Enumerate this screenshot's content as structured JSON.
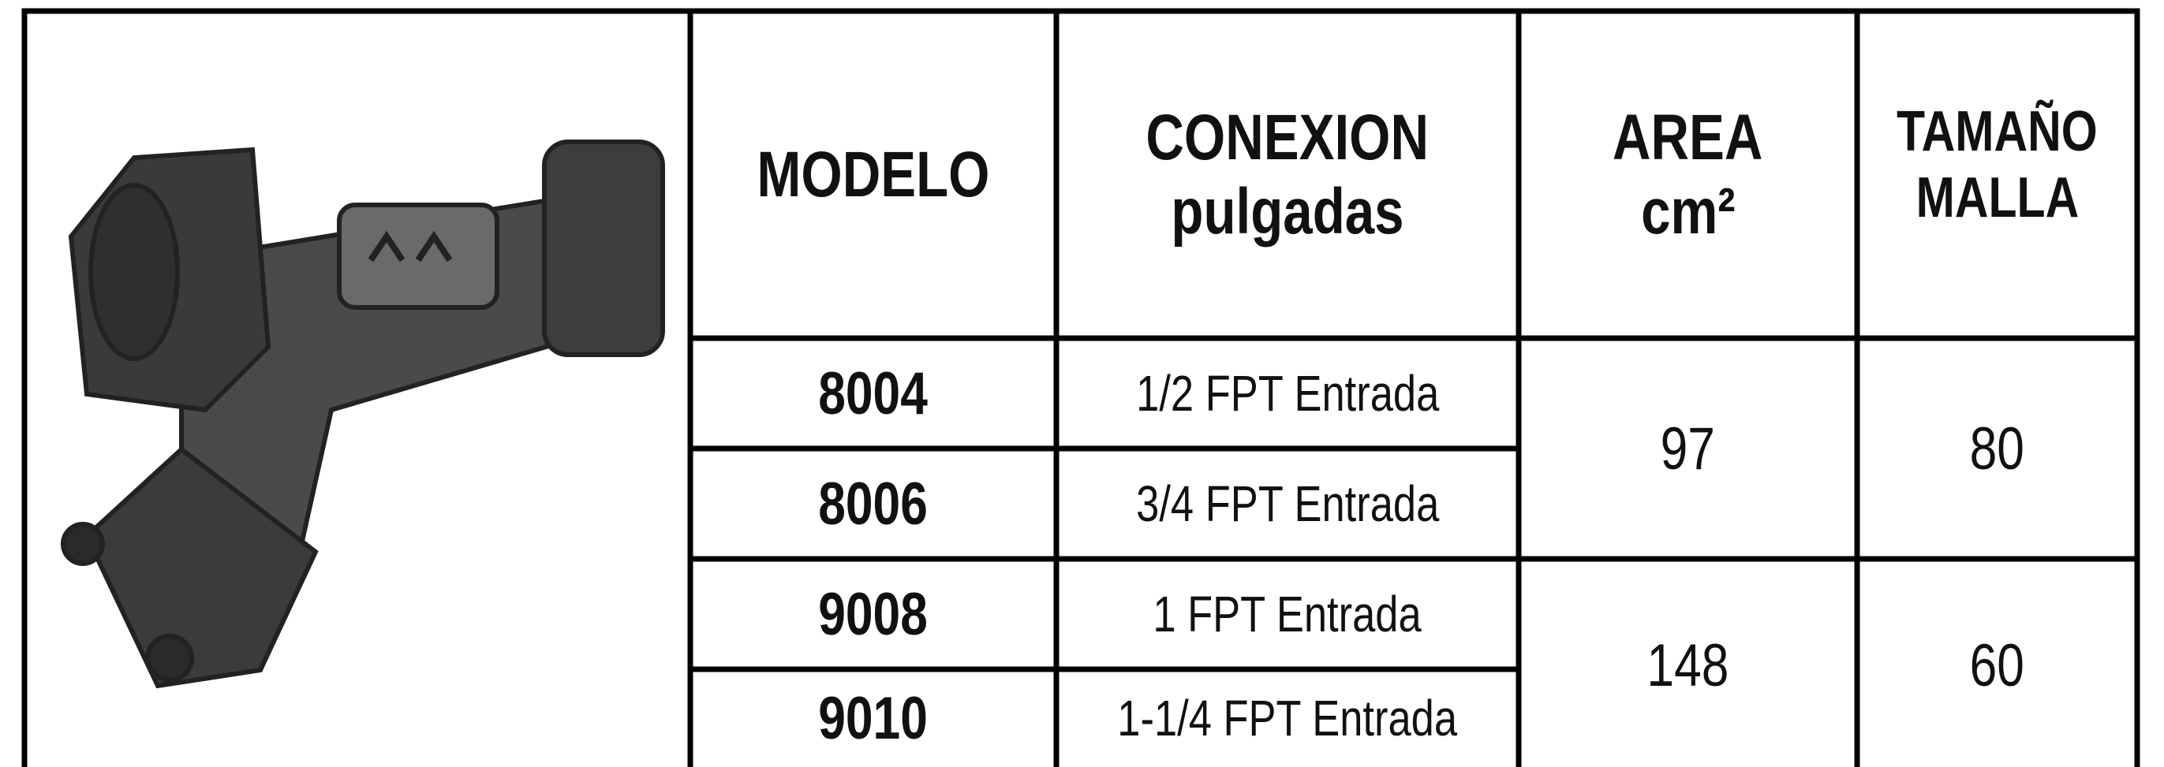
{
  "table": {
    "headers": [
      [
        "MODELO"
      ],
      [
        "CONEXION",
        "pulgadas"
      ],
      [
        "AREA",
        "cm²"
      ],
      [
        "TAMAÑO",
        "MALLA"
      ]
    ],
    "groups": [
      {
        "area": 97,
        "malla": 80,
        "rows": [
          {
            "modelo": "8004",
            "conexion": "1/2 FPT Entrada"
          },
          {
            "modelo": "8006",
            "conexion": "3/4 FPT Entrada"
          }
        ]
      },
      {
        "area": 148,
        "malla": 60,
        "rows": [
          {
            "modelo": "9008",
            "conexion": "1 FPT Entrada"
          },
          {
            "modelo": "9010",
            "conexion": "1-1/4 FPT Entrada"
          }
        ]
      }
    ]
  }
}
